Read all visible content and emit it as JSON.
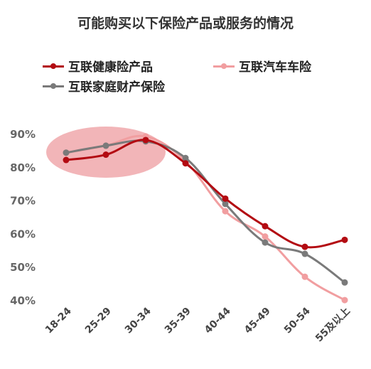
{
  "chart_data": {
    "type": "line",
    "title": "可能购买以下保险产品或服务的情况",
    "categories": [
      "18-24",
      "25-29",
      "30-34",
      "35-39",
      "40-44",
      "45-49",
      "50-54",
      "55及以上"
    ],
    "yticks": [
      "40%",
      "50%",
      "60%",
      "70%",
      "80%",
      "90%"
    ],
    "ylim": [
      40,
      90
    ],
    "grid": false,
    "legend_position": "top",
    "series": [
      {
        "name": "互联健康险产品",
        "color": "#b30b12",
        "values": [
          82.3,
          83.9,
          88.3,
          81.3,
          70.7,
          62.4,
          56.2,
          58.3
        ]
      },
      {
        "name": "互联汽车车险",
        "color": "#f19ea0",
        "values": [
          84.5,
          86.6,
          89.4,
          81.9,
          66.9,
          59.3,
          47.2,
          40.2
        ]
      },
      {
        "name": "互联家庭财产保险",
        "color": "#7a7a7a",
        "values": [
          84.5,
          86.6,
          87.9,
          82.9,
          69.1,
          57.5,
          54.1,
          45.5
        ]
      }
    ],
    "highlight": {
      "type": "ellipse",
      "categories": [
        "18-24",
        "30-34"
      ],
      "color": "#e8797d"
    }
  }
}
